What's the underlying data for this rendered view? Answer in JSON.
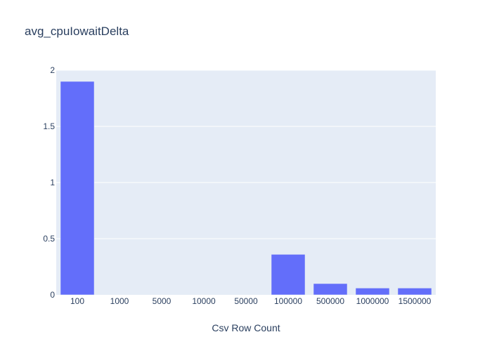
{
  "chart_data": {
    "type": "bar",
    "title": "avg_cpuIowaitDelta",
    "xlabel": "Csv Row Count",
    "ylabel": "",
    "categories": [
      "100",
      "1000",
      "5000",
      "10000",
      "50000",
      "100000",
      "500000",
      "1000000",
      "1500000"
    ],
    "values": [
      1.9,
      0.0,
      0.0,
      0.0,
      0.0,
      0.36,
      0.1,
      0.06,
      0.06
    ],
    "ylim": [
      0,
      2
    ],
    "yticks": [
      0,
      0.5,
      1,
      1.5,
      2
    ],
    "ytick_labels": [
      "0",
      "0.5",
      "1",
      "1.5",
      "2"
    ],
    "grid": true,
    "legend": "none",
    "colors": {
      "bar": "#636efa",
      "plot_bg": "#e5ecf6",
      "grid": "#ffffff",
      "text": "#2a3f5f"
    }
  }
}
